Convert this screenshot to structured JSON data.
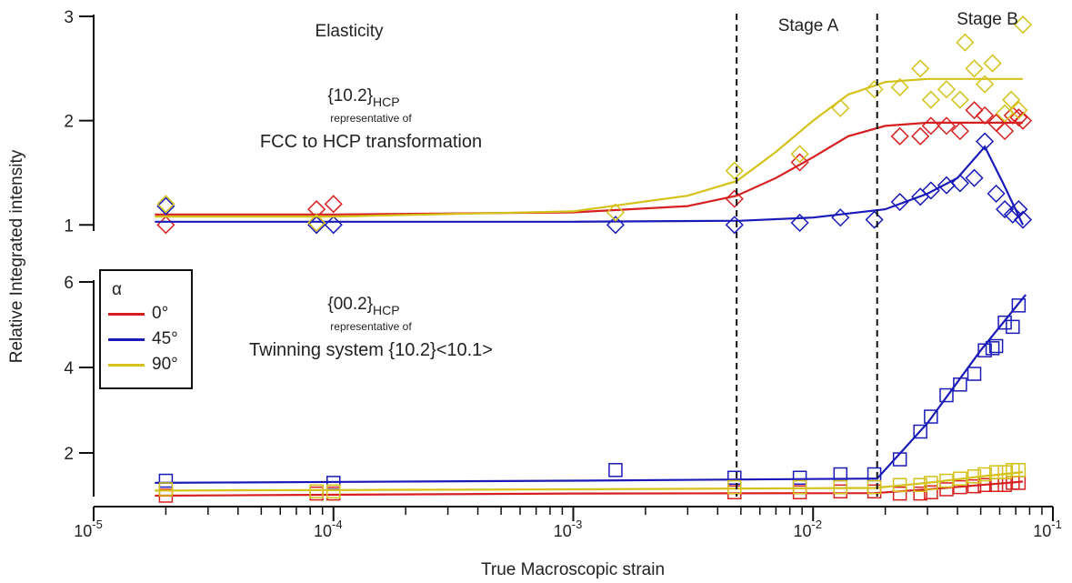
{
  "chart_data": {
    "type": "scatter",
    "xlabel": "True Macroscopic strain",
    "ylabel": "Relative Integrated intensity",
    "xscale": "log",
    "xlim": [
      1e-05,
      0.1
    ],
    "x_ticks": [
      "10-5",
      "10-4",
      "10-3",
      "10-2",
      "10-1"
    ],
    "stage_lines_x": [
      0.0048,
      0.0185
    ],
    "annotations": {
      "elasticity": "Elasticity",
      "stage_a": "Stage A",
      "stage_b": "Stage B"
    },
    "legend": {
      "title": "α",
      "placement": "left-middle",
      "entries": [
        {
          "label": "0°",
          "color": "#d62020"
        },
        {
          "label": "45°",
          "color": "#1a1ab8"
        },
        {
          "label": "90°",
          "color": "#d4c21a"
        }
      ]
    },
    "panels": [
      {
        "id": "top",
        "marker": "diamond",
        "ylim": [
          0.95,
          3.0
        ],
        "yticks": [
          1,
          2,
          3
        ],
        "label_main": "{10.2}",
        "label_sub": "HCP",
        "label_rep": "representative of",
        "label_desc": "FCC to HCP transformation",
        "series": [
          {
            "color": "#d62020",
            "points": [
              [
                2e-05,
                1.0
              ],
              [
                8.5e-05,
                1.15
              ],
              [
                0.0001,
                1.2
              ],
              [
                0.0047,
                1.25
              ],
              [
                0.0088,
                1.6
              ],
              [
                0.023,
                1.85
              ],
              [
                0.028,
                1.85
              ],
              [
                0.031,
                1.95
              ],
              [
                0.036,
                1.95
              ],
              [
                0.041,
                1.9
              ],
              [
                0.047,
                2.1
              ],
              [
                0.052,
                2.05
              ],
              [
                0.058,
                1.98
              ],
              [
                0.063,
                1.9
              ],
              [
                0.068,
                2.05
              ],
              [
                0.072,
                2.03
              ],
              [
                0.075,
                2.0
              ]
            ],
            "fit": [
              [
                1.8e-05,
                1.1
              ],
              [
                0.0001,
                1.1
              ],
              [
                0.001,
                1.12
              ],
              [
                0.003,
                1.18
              ],
              [
                0.0048,
                1.28
              ],
              [
                0.007,
                1.45
              ],
              [
                0.01,
                1.65
              ],
              [
                0.014,
                1.85
              ],
              [
                0.02,
                1.95
              ],
              [
                0.03,
                1.98
              ],
              [
                0.075,
                1.98
              ]
            ]
          },
          {
            "color": "#1a1ab8",
            "points": [
              [
                2e-05,
                1.18
              ],
              [
                8.5e-05,
                1.0
              ],
              [
                0.0001,
                1.0
              ],
              [
                0.0015,
                1.0
              ],
              [
                0.0047,
                1.0
              ],
              [
                0.0088,
                1.02
              ],
              [
                0.013,
                1.07
              ],
              [
                0.018,
                1.05
              ],
              [
                0.023,
                1.22
              ],
              [
                0.028,
                1.27
              ],
              [
                0.031,
                1.33
              ],
              [
                0.036,
                1.38
              ],
              [
                0.041,
                1.4
              ],
              [
                0.047,
                1.45
              ],
              [
                0.052,
                1.8
              ],
              [
                0.058,
                1.3
              ],
              [
                0.063,
                1.15
              ],
              [
                0.068,
                1.1
              ],
              [
                0.072,
                1.15
              ],
              [
                0.075,
                1.05
              ]
            ],
            "fit": [
              [
                1.8e-05,
                1.03
              ],
              [
                0.0001,
                1.03
              ],
              [
                0.001,
                1.03
              ],
              [
                0.005,
                1.04
              ],
              [
                0.01,
                1.07
              ],
              [
                0.02,
                1.15
              ],
              [
                0.03,
                1.3
              ],
              [
                0.04,
                1.45
              ],
              [
                0.052,
                1.75
              ],
              [
                0.062,
                1.4
              ],
              [
                0.075,
                1.0
              ]
            ]
          },
          {
            "color": "#d4c21a",
            "points": [
              [
                2e-05,
                1.2
              ],
              [
                8.5e-05,
                1.02
              ],
              [
                0.0015,
                1.12
              ],
              [
                0.0047,
                1.52
              ],
              [
                0.0088,
                1.68
              ],
              [
                0.013,
                2.12
              ],
              [
                0.018,
                2.3
              ],
              [
                0.023,
                2.32
              ],
              [
                0.028,
                2.5
              ],
              [
                0.031,
                2.2
              ],
              [
                0.036,
                2.3
              ],
              [
                0.041,
                2.2
              ],
              [
                0.043,
                2.75
              ],
              [
                0.047,
                2.5
              ],
              [
                0.052,
                2.35
              ],
              [
                0.056,
                2.55
              ],
              [
                0.063,
                2.07
              ],
              [
                0.067,
                2.2
              ],
              [
                0.072,
                2.1
              ],
              [
                0.075,
                2.92
              ]
            ],
            "fit": [
              [
                1.8e-05,
                1.08
              ],
              [
                0.0001,
                1.08
              ],
              [
                0.001,
                1.13
              ],
              [
                0.003,
                1.28
              ],
              [
                0.0048,
                1.42
              ],
              [
                0.007,
                1.7
              ],
              [
                0.01,
                2.0
              ],
              [
                0.014,
                2.25
              ],
              [
                0.02,
                2.37
              ],
              [
                0.03,
                2.4
              ],
              [
                0.075,
                2.4
              ]
            ]
          }
        ]
      },
      {
        "id": "bottom",
        "marker": "square",
        "ylim": [
          1.0,
          6.0
        ],
        "yticks": [
          2,
          4,
          6
        ],
        "label_main": "{00.2}",
        "label_sub": "HCP",
        "label_rep": "representative of",
        "label_desc": "Twinning system {10.2}<10.1>",
        "series": [
          {
            "color": "#d62020",
            "points": [
              [
                2e-05,
                1.0
              ],
              [
                8.5e-05,
                1.05
              ],
              [
                0.0001,
                1.05
              ],
              [
                0.0047,
                1.08
              ],
              [
                0.0088,
                1.08
              ],
              [
                0.013,
                1.1
              ],
              [
                0.018,
                1.1
              ],
              [
                0.023,
                1.05
              ],
              [
                0.028,
                1.05
              ],
              [
                0.031,
                1.08
              ],
              [
                0.036,
                1.15
              ],
              [
                0.041,
                1.2
              ],
              [
                0.047,
                1.22
              ],
              [
                0.052,
                1.25
              ],
              [
                0.058,
                1.25
              ],
              [
                0.063,
                1.25
              ],
              [
                0.068,
                1.3
              ],
              [
                0.072,
                1.3
              ]
            ],
            "fit": [
              [
                1.8e-05,
                1.0
              ],
              [
                0.001,
                1.05
              ],
              [
                0.018,
                1.06
              ],
              [
                0.03,
                1.15
              ],
              [
                0.05,
                1.25
              ],
              [
                0.075,
                1.33
              ]
            ]
          },
          {
            "color": "#1a1ab8",
            "points": [
              [
                2e-05,
                1.35
              ],
              [
                0.0001,
                1.3
              ],
              [
                0.0015,
                1.6
              ],
              [
                0.0047,
                1.42
              ],
              [
                0.0088,
                1.42
              ],
              [
                0.013,
                1.5
              ],
              [
                0.018,
                1.5
              ],
              [
                0.023,
                1.85
              ],
              [
                0.028,
                2.5
              ],
              [
                0.031,
                2.85
              ],
              [
                0.036,
                3.35
              ],
              [
                0.041,
                3.6
              ],
              [
                0.047,
                3.85
              ],
              [
                0.052,
                4.4
              ],
              [
                0.056,
                4.45
              ],
              [
                0.058,
                4.5
              ],
              [
                0.063,
                5.05
              ],
              [
                0.068,
                4.95
              ],
              [
                0.072,
                5.45
              ]
            ],
            "fit": [
              [
                1.8e-05,
                1.3
              ],
              [
                0.001,
                1.35
              ],
              [
                0.018,
                1.4
              ],
              [
                0.0185,
                1.4
              ],
              [
                0.03,
                2.7
              ],
              [
                0.05,
                4.4
              ],
              [
                0.077,
                5.7
              ]
            ]
          },
          {
            "color": "#d4c21a",
            "points": [
              [
                2e-05,
                1.15
              ],
              [
                8.5e-05,
                1.1
              ],
              [
                0.0001,
                1.1
              ],
              [
                0.0047,
                1.2
              ],
              [
                0.0088,
                1.2
              ],
              [
                0.013,
                1.2
              ],
              [
                0.018,
                1.2
              ],
              [
                0.023,
                1.25
              ],
              [
                0.028,
                1.25
              ],
              [
                0.031,
                1.3
              ],
              [
                0.036,
                1.35
              ],
              [
                0.041,
                1.4
              ],
              [
                0.047,
                1.45
              ],
              [
                0.052,
                1.5
              ],
              [
                0.058,
                1.55
              ],
              [
                0.063,
                1.55
              ],
              [
                0.068,
                1.6
              ],
              [
                0.072,
                1.6
              ]
            ],
            "fit": [
              [
                1.8e-05,
                1.12
              ],
              [
                0.001,
                1.15
              ],
              [
                0.018,
                1.18
              ],
              [
                0.03,
                1.3
              ],
              [
                0.05,
                1.45
              ],
              [
                0.075,
                1.55
              ]
            ]
          }
        ]
      }
    ]
  }
}
